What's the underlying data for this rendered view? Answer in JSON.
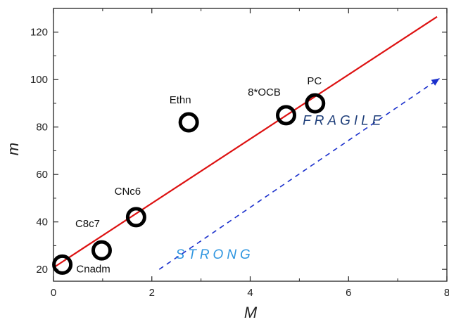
{
  "chart_data": {
    "type": "scatter",
    "title": "",
    "xlabel": "M",
    "ylabel": "m",
    "xlim": [
      0,
      8
    ],
    "ylim": [
      15,
      130
    ],
    "x_ticks": [
      0,
      2,
      4,
      6,
      8
    ],
    "y_ticks": [
      20,
      40,
      60,
      80,
      100,
      120
    ],
    "grid": false,
    "points": [
      {
        "label": "Cnadm",
        "x": 0.18,
        "y": 22
      },
      {
        "label": "C8c7",
        "x": 0.98,
        "y": 28
      },
      {
        "label": "CNc6",
        "x": 1.68,
        "y": 42
      },
      {
        "label": "Ethn",
        "x": 2.75,
        "y": 82
      },
      {
        "label": "8*OCB",
        "x": 4.73,
        "y": 85
      },
      {
        "label": "PC",
        "x": 5.32,
        "y": 90
      }
    ],
    "fit_line": {
      "x": [
        0.02,
        7.8
      ],
      "y": [
        21,
        126.5
      ],
      "color": "#dd1111"
    },
    "arrow": {
      "x": [
        2.15,
        7.85
      ],
      "y": [
        20,
        100.5
      ],
      "color": "#1a2fcc",
      "style": "dashed"
    },
    "annotations": [
      {
        "text": "FRAGILE",
        "x": 5.9,
        "y": 81,
        "color": "#1f3f7a"
      },
      {
        "text": "STRONG",
        "x": 3.28,
        "y": 24.5,
        "color": "#2f96e0"
      }
    ],
    "marker_color": "#000000"
  }
}
